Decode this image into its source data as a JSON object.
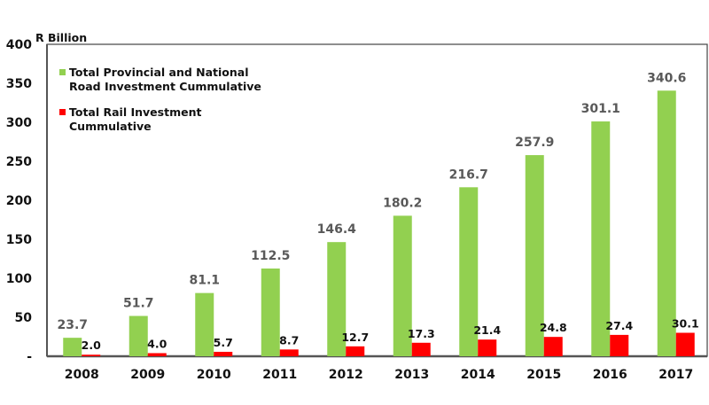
{
  "chart_data": {
    "type": "bar",
    "title": "",
    "unit_label": "R Billion",
    "xlabel": "",
    "ylabel": "R Billion",
    "ylim": [
      0,
      400
    ],
    "y_ticks": [
      0,
      50,
      100,
      150,
      200,
      250,
      300,
      350,
      400
    ],
    "y_tick_labels": [
      "-",
      "50",
      "100",
      "150",
      "200",
      "250",
      "300",
      "350",
      "400"
    ],
    "grid": false,
    "legend_position": "top-left",
    "categories": [
      "2008",
      "2009",
      "2010",
      "2011",
      "2012",
      "2013",
      "2014",
      "2015",
      "2016",
      "2017"
    ],
    "series": [
      {
        "name": "Total Provincial and National Road Investment Cummulative",
        "legend_lines": [
          "Total Provincial and National",
          "Road Investment Cummulative"
        ],
        "color": "#92d050",
        "label_color": "#595959",
        "values": [
          23.7,
          51.7,
          81.1,
          112.5,
          146.4,
          180.2,
          216.7,
          257.9,
          301.1,
          340.6
        ],
        "labels": [
          "23.7",
          "51.7",
          "81.1",
          "112.5",
          "146.4",
          "180.2",
          "216.7",
          "257.9",
          "301.1",
          "340.6"
        ]
      },
      {
        "name": "Total Rail Investment Cummulative",
        "legend_lines": [
          "Total Rail Investment",
          "Cummulative"
        ],
        "color": "#ff0000",
        "label_color": "#111111",
        "values": [
          2.0,
          4.0,
          5.7,
          8.7,
          12.7,
          17.3,
          21.4,
          24.8,
          27.4,
          30.1
        ],
        "labels": [
          "2.0",
          "4.0",
          "5.7",
          "8.7",
          "12.7",
          "17.3",
          "21.4",
          "24.8",
          "27.4",
          "30.1"
        ]
      }
    ]
  }
}
